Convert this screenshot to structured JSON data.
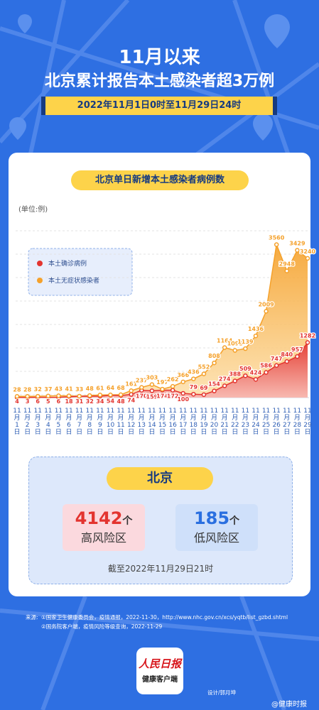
{
  "header": {
    "title_line1": "11月以来",
    "title_line2": "北京累计报告本土感染者超3万例",
    "date_range": "2022年11月1日0时至11月29日24时"
  },
  "chart_data": {
    "type": "area",
    "title": "北京单日新增本土感染者病例数",
    "unit_label": "(单位:例)",
    "categories": [
      "11月1日",
      "11月2日",
      "11月3日",
      "11月4日",
      "11月5日",
      "11月6日",
      "11月7日",
      "11月8日",
      "11月9日",
      "11月10日",
      "11月11日",
      "11月12日",
      "11月13日",
      "11月14日",
      "11月15日",
      "11月16日",
      "11月17日",
      "11月18日",
      "11月19日",
      "11月20日",
      "11月21日",
      "11月22日",
      "11月23日",
      "11月24日",
      "11月25日",
      "11月26日",
      "11月27日",
      "11月28日",
      "11月29日"
    ],
    "series": [
      {
        "name": "本土确诊病例",
        "color": "#e3342f",
        "values": [
          4,
          3,
          6,
          5,
          6,
          18,
          31,
          32,
          34,
          54,
          48,
          74,
          170,
          159,
          174,
          172,
          100,
          79,
          69,
          154,
          274,
          388,
          509,
          424,
          586,
          747,
          840,
          957,
          1282
        ]
      },
      {
        "name": "本土无症状感染者",
        "color": "#f5a12b",
        "values": [
          28,
          28,
          32,
          37,
          43,
          41,
          33,
          48,
          61,
          64,
          68,
          161,
          237,
          303,
          197,
          262,
          366,
          436,
          552,
          808,
          1164,
          1098,
          1139,
          1436,
          2009,
          3560,
          2948,
          3429,
          3240
        ]
      }
    ],
    "ylim": [
      0,
      3800
    ],
    "grid": true
  },
  "summary": {
    "region": "北京",
    "high_risk": {
      "value": 4142,
      "unit": "个",
      "label": "高风险区"
    },
    "low_risk": {
      "value": 185,
      "unit": "个",
      "label": "低风险区"
    },
    "as_of": "截至2022年11月29日21时"
  },
  "footer": {
    "source_label": "来源:",
    "sources": [
      "①国家卫生健康委员会，疫情通报，2022-11-30，http://www.nhc.gov.cn/xcs/yqtb/list_gzbd.shtml",
      "②国务院客户端，疫情风险等级查询，2022-11-29"
    ],
    "logo_line1": "人民日报",
    "logo_line2": "健康客户端",
    "designer": "设计/郭月坤",
    "watermark": "@健康时报"
  }
}
